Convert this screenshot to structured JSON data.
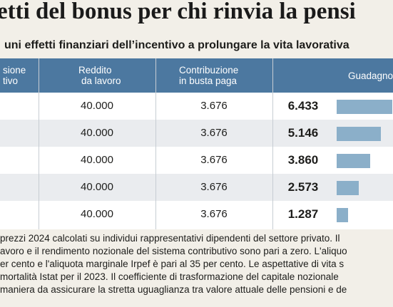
{
  "title": "etti del bonus per chi rinvia la pensi",
  "subtitle": "uni effetti finanziari dell’incentivo a prolungare la vita lavorativa",
  "table": {
    "headers": {
      "col1": [
        "sione",
        "tivo"
      ],
      "reddito": [
        "Reddito",
        "da lavoro"
      ],
      "contribuzione": [
        "Contribuzione",
        "in busta paga"
      ],
      "guadagno": [
        "Guadagno"
      ]
    },
    "rows": [
      {
        "reddito": "40.000",
        "contribuzione": "3.676",
        "guadagno": "6.433",
        "guadagno_value": 6433
      },
      {
        "reddito": "40.000",
        "contribuzione": "3.676",
        "guadagno": "5.146",
        "guadagno_value": 5146
      },
      {
        "reddito": "40.000",
        "contribuzione": "3.676",
        "guadagno": "3.860",
        "guadagno_value": 3860
      },
      {
        "reddito": "40.000",
        "contribuzione": "3.676",
        "guadagno": "2.573",
        "guadagno_value": 2573
      },
      {
        "reddito": "40.000",
        "contribuzione": "3.676",
        "guadagno": "1.287",
        "guadagno_value": 1287
      }
    ]
  },
  "note_lines": [
    "prezzi 2024 calcolati su individui rappresentativi dipendenti del settore privato. Il",
    "avoro e il rendimento nozionale del sistema contributivo sono pari a zero. L'aliquo",
    "er cento e l'aliquota marginale Irpef è pari al 35 per cento. Le aspettative di vita s",
    "mortalità Istat per il 2023. Il coefficiente di trasformazione del capitale nozionale",
    "maniera da assicurare la stretta uguaglianza tra valore attuale delle pensioni e de"
  ],
  "colors": {
    "header_bg": "#4c78a0",
    "bar": "#8bafc9",
    "row_shade": "#eaecef",
    "page_bg": "#f2efe8"
  }
}
